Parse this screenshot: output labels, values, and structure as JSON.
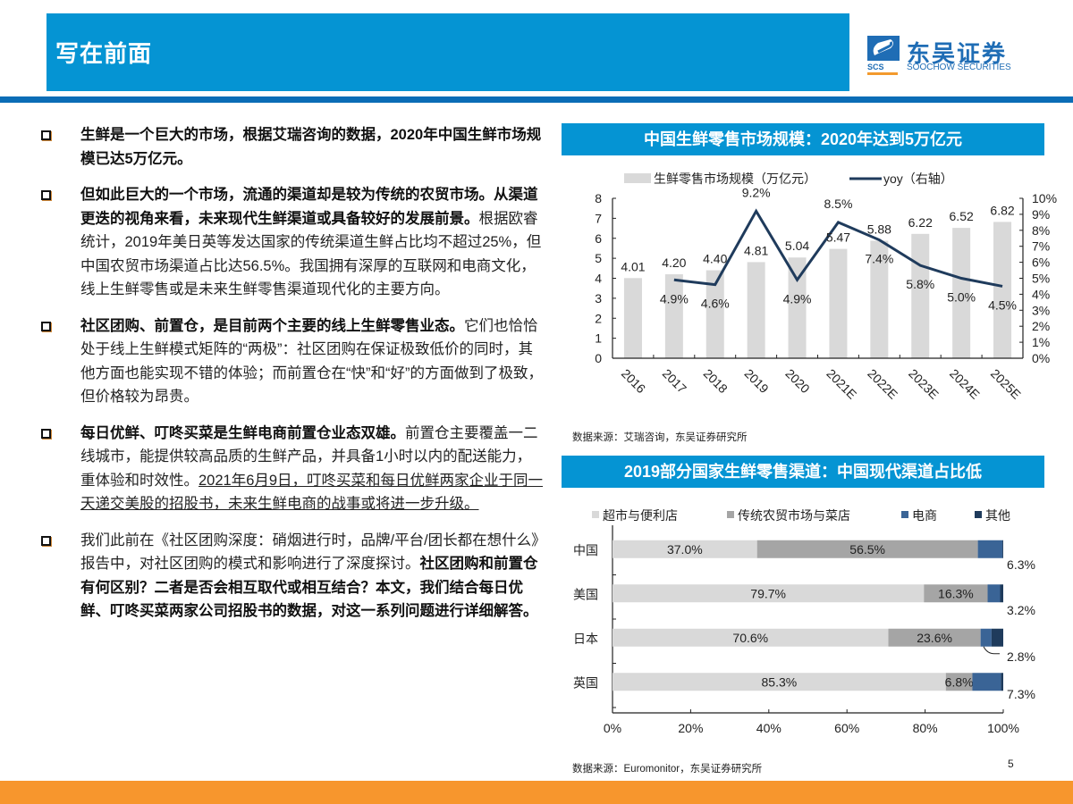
{
  "header": {
    "title": "写在前面",
    "logo_cn": "东吴证券",
    "logo_en": "SOOCHOW SECURITIES",
    "logo_abbr": "SCS"
  },
  "bullets": [
    {
      "bold": "生鲜是一个巨大的市场，根据艾瑞咨询的数据，2020年中国生鲜市场规模已达5万亿元。",
      "normal": "",
      "underline": "",
      "bold_tail": ""
    },
    {
      "bold": "但如此巨大的一个市场，流通的渠道却是较为传统的农贸市场。从渠道更迭的视角来看，未来现代生鲜渠道或具备较好的发展前景。",
      "normal": "根据欧睿统计，2019年美日英等发达国家的传统渠道生鲜占比均不超过25%，但中国农贸市场渠道占比达56.5%。我国拥有深厚的互联网和电商文化，线上生鲜零售或是未来生鲜零售渠道现代化的主要方向。",
      "underline": "",
      "bold_tail": ""
    },
    {
      "bold": "社区团购、前置仓，是目前两个主要的线上生鲜零售业态。",
      "normal": "它们也恰恰处于线上生鲜模式矩阵的“两极”：社区团购在保证极致低价的同时，其他方面也能实现不错的体验；而前置仓在“快”和“好”的方面做到了极致，但价格较为昂贵。",
      "underline": "",
      "bold_tail": ""
    },
    {
      "bold": "每日优鲜、叮咚买菜是生鲜电商前置仓业态双雄。",
      "normal": "前置仓主要覆盖一二线城市，能提供较高品质的生鲜产品，并具备1小时以内的配送能力，重体验和时效性。",
      "underline": "2021年6月9日，叮咚买菜和每日优鲜两家企业于同一天递交美股的招股书，未来生鲜电商的战事或将进一步升级。",
      "bold_tail": ""
    },
    {
      "bold": "",
      "normal": "我们此前在《社区团购深度：硝烟进行时，品牌/平台/团长都在想什么》报告中，对社区团购的模式和影响进行了深度探讨。",
      "underline": "",
      "bold_tail": "社区团购和前置仓有何区别？二者是否会相互取代或相互结合？本文，我们结合每日优鲜、叮咚买菜两家公司招股书的数据，对这一系列问题进行详细解答。"
    }
  ],
  "chart1": {
    "title": "中国生鲜零售市场规模：2020年达到5万亿元",
    "source": "数据来源：艾瑞咨询，东吴证券研究所"
  },
  "chart2": {
    "title": "2019部分国家生鲜零售渠道：中国现代渠道占比低",
    "source": "数据来源：Euromonitor，东吴证券研究所"
  },
  "page_number": "5",
  "colors": {
    "brand_blue": "#0594d3",
    "rule_blue": "#0b6db6",
    "footer_orange": "#f7962d",
    "line_navy": "#1f3b5c",
    "bar_gray": "#d9d9d9"
  },
  "chart_data": [
    {
      "type": "bar",
      "title": "中国生鲜零售市场规模：2020年达到5万亿元",
      "categories": [
        "2016",
        "2017",
        "2018",
        "2019",
        "2020",
        "2021E",
        "2022E",
        "2023E",
        "2024E",
        "2025E"
      ],
      "series": [
        {
          "name": "生鲜零售市场规模（万亿元）",
          "type": "bar",
          "axis": "left",
          "color": "#d9d9d9",
          "values": [
            4.01,
            4.2,
            4.4,
            4.81,
            5.04,
            5.47,
            5.88,
            6.22,
            6.52,
            6.82
          ]
        },
        {
          "name": "yoy（右轴）",
          "type": "line",
          "axis": "right",
          "color": "#1f3b5c",
          "values": [
            null,
            4.9,
            4.6,
            9.2,
            4.9,
            8.5,
            7.4,
            5.8,
            5.0,
            4.5
          ]
        }
      ],
      "ylabel_left": "",
      "ylim_left": [
        0,
        8
      ],
      "yticks_left": [
        0,
        1,
        2,
        3,
        4,
        5,
        6,
        7,
        8
      ],
      "ylabel_right": "",
      "ylim_right": [
        0,
        10
      ],
      "yticks_right": [
        "0%",
        "1%",
        "2%",
        "3%",
        "4%",
        "5%",
        "6%",
        "7%",
        "8%",
        "9%",
        "10%"
      ],
      "bar_labels": [
        "4.01",
        "4.20",
        "4.40",
        "4.81",
        "5.04",
        "5.47",
        "5.88",
        "6.22",
        "6.52",
        "6.82"
      ],
      "line_labels": [
        "",
        "4.9%",
        "4.6%",
        "9.2%",
        "4.9%",
        "8.5%",
        "7.4%",
        "5.8%",
        "5.0%",
        "4.5%"
      ],
      "legend_position": "top",
      "grid": false
    },
    {
      "type": "bar",
      "orientation": "horizontal",
      "stacked": true,
      "title": "2019部分国家生鲜零售渠道：中国现代渠道占比低",
      "categories": [
        "中国",
        "美国",
        "日本",
        "英国"
      ],
      "series": [
        {
          "name": "超市与便利店",
          "color": "#d9d9d9",
          "values": [
            37.0,
            79.7,
            70.6,
            85.3
          ]
        },
        {
          "name": "传统农贸市场与菜店",
          "color": "#a5a5a5",
          "values": [
            56.5,
            16.3,
            23.6,
            6.8
          ]
        },
        {
          "name": "电商",
          "color": "#3a6496",
          "values": [
            6.3,
            3.2,
            2.8,
            7.3
          ]
        },
        {
          "name": "其他",
          "color": "#1f3b5c",
          "values": [
            0.2,
            0.8,
            3.0,
            0.6
          ]
        }
      ],
      "xlim": [
        0,
        100
      ],
      "xticks": [
        "0%",
        "20%",
        "40%",
        "60%",
        "80%",
        "100%"
      ],
      "legend_position": "top",
      "grid": false
    }
  ]
}
